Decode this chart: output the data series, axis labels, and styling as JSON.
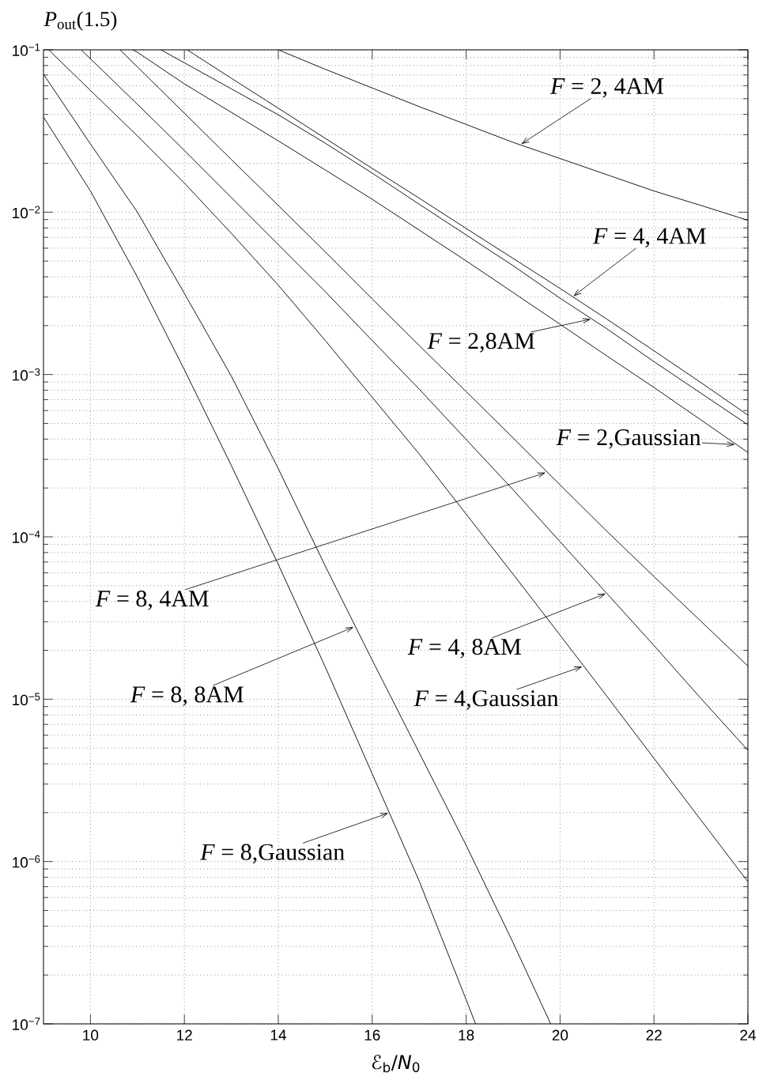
{
  "chart_data": {
    "type": "line",
    "xlabel": "ℰ$_{b}$/*N*$_{0}$",
    "ylabel": "*P*$_{out}$(1.5)",
    "xlim": [
      9,
      24
    ],
    "ylim": [
      1e-07,
      0.1
    ],
    "xticks": [
      10,
      12,
      14,
      16,
      18,
      20,
      22,
      24
    ],
    "yticks": [
      {
        "value": 1e-07,
        "label": "10$^{−7}$"
      },
      {
        "value": 1e-06,
        "label": "10$^{−6}$"
      },
      {
        "value": 1e-05,
        "label": "10$^{−5}$"
      },
      {
        "value": 0.0001,
        "label": "10$^{−4}$"
      },
      {
        "value": 0.001,
        "label": "10$^{−3}$"
      },
      {
        "value": 0.01,
        "label": "10$^{−2}$"
      },
      {
        "value": 0.1,
        "label": "10$^{−1}$"
      }
    ],
    "log": "y",
    "grid": true,
    "line_style": "solid",
    "series": [
      {
        "color": "#000000",
        "x": [
          14,
          15,
          16,
          17,
          18,
          19,
          20,
          21,
          22,
          23,
          24
        ],
        "values": [
          0.1,
          0.0759,
          0.0582,
          0.0447,
          0.0347,
          0.0269,
          0.0214,
          0.017,
          0.0135,
          0.011,
          0.00891
        ]
      },
      {
        "color": "#000000",
        "x": [
          12.06,
          13,
          14,
          15,
          16,
          17,
          18,
          19,
          20,
          21,
          22,
          23,
          24
        ],
        "values": [
          0.1,
          0.0668,
          0.0437,
          0.0285,
          0.0186,
          0.0122,
          0.00794,
          0.00519,
          0.00339,
          0.00219,
          0.0014,
          0.000891,
          0.000562
        ]
      },
      {
        "color": "#000000",
        "x": [
          11.5,
          12,
          13,
          14,
          15,
          16,
          17,
          18,
          19,
          20,
          21,
          22,
          23,
          24
        ],
        "values": [
          0.1,
          0.0832,
          0.0575,
          0.0398,
          0.0266,
          0.0174,
          0.0112,
          0.00724,
          0.00468,
          0.00295,
          0.00191,
          0.0012,
          0.000767,
          0.00049
        ]
      },
      {
        "color": "#000000",
        "x": [
          10.9,
          11,
          12,
          13,
          14,
          15,
          16,
          17,
          18,
          19,
          20,
          21,
          22,
          23,
          24
        ],
        "values": [
          0.1,
          0.0966,
          0.0617,
          0.0412,
          0.0275,
          0.0182,
          0.012,
          0.00776,
          0.00501,
          0.0032,
          0.00204,
          0.0013,
          0.000832,
          0.000525,
          0.000331
        ]
      },
      {
        "color": "#000000",
        "x": [
          10.63,
          11,
          12,
          13,
          14,
          15,
          16,
          17,
          18,
          19,
          20,
          21,
          22,
          23,
          24
        ],
        "values": [
          0.1,
          0.0785,
          0.0407,
          0.0211,
          0.011,
          0.00569,
          0.00292,
          0.00151,
          0.000785,
          0.000407,
          0.000209,
          0.000108,
          5.69e-05,
          3.02e-05,
          1.6e-05
        ]
      },
      {
        "color": "#000000",
        "x": [
          9.8,
          10,
          11,
          12,
          13,
          14,
          15,
          16,
          17,
          18,
          19,
          20,
          21,
          22,
          23,
          24
        ],
        "values": [
          0.1,
          0.0881,
          0.0462,
          0.024,
          0.0123,
          0.00631,
          0.00324,
          0.00162,
          0.000813,
          0.000398,
          0.000195,
          9.33e-05,
          4.47e-05,
          2.14e-05,
          1.01e-05,
          4.84e-06
        ]
      },
      {
        "color": "#000000",
        "x": [
          9.11,
          10,
          11,
          12,
          13,
          14,
          15,
          16,
          17,
          18,
          19,
          20,
          21,
          22,
          23,
          24
        ],
        "values": [
          0.1,
          0.0562,
          0.0295,
          0.0151,
          0.00741,
          0.00355,
          0.00162,
          0.000724,
          0.000324,
          0.000138,
          5.89e-05,
          2.48e-05,
          1.04e-05,
          4.32e-06,
          1.8e-06,
          7.5e-07
        ]
      },
      {
        "color": "#000000",
        "x": [
          9,
          10,
          11,
          12,
          13,
          14,
          15,
          16,
          17,
          18,
          18.2
        ],
        "values": [
          0.0385,
          0.0135,
          0.00398,
          0.00107,
          0.000275,
          6.76e-05,
          1.58e-05,
          3.47e-06,
          7.59e-07,
          1.41e-07,
          1e-07
        ]
      },
      {
        "color": "#000000",
        "x": [
          9,
          10,
          11,
          12,
          13,
          14,
          15,
          16,
          17,
          18,
          19,
          19.8
        ],
        "values": [
          0.0708,
          0.0263,
          0.01,
          0.00316,
          0.000977,
          0.000263,
          6.61e-05,
          1.74e-05,
          4.68e-06,
          1.26e-06,
          3.16e-07,
          1e-07
        ]
      }
    ],
    "annotations": [
      {
        "text": "*F* = 2, 4AM",
        "x": 19.15,
        "y": 0.026
      },
      {
        "text": "*F* = 4, 4AM",
        "x": 20.26,
        "y": 0.003
      },
      {
        "text": "*F* = 2,8AM",
        "x": 20.68,
        "y": 0.0022
      },
      {
        "text": "*F* = 2,Gaussian",
        "x": 23.75,
        "y": 0.00037
      },
      {
        "text": "*F* = 8, 4AM",
        "x": 19.72,
        "y": 0.00025
      },
      {
        "text": "*F* = 8, 8AM",
        "x": 15.63,
        "y": 2.8e-05
      },
      {
        "text": "*F* = 4, 8AM",
        "x": 21.0,
        "y": 4.5e-05
      },
      {
        "text": "*F* = 4,Gaussian",
        "x": 20.5,
        "y": 1.6e-05
      },
      {
        "text": "*F* = 8,Gaussian",
        "x": 16.37,
        "y": 2e-06
      }
    ]
  }
}
